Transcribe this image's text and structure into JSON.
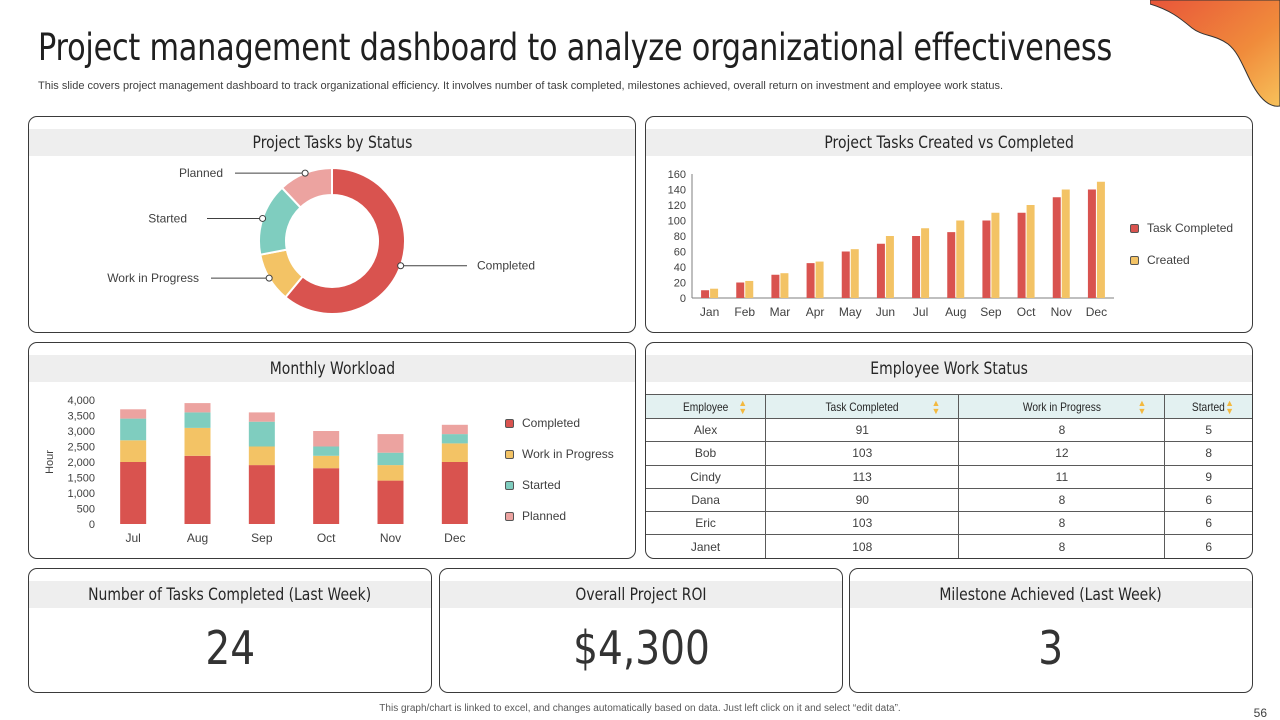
{
  "title": "Project management dashboard to analyze organizational effectiveness",
  "subtitle": "This slide covers project management dashboard to track organizational efficiency. It involves number of task completed, milestones achieved, overall return on investment and employee work status.",
  "footer_note": "This graph/chart is linked to excel, and changes automatically based on data. Just left click on it and select “edit data”.",
  "page_number": "56",
  "colors": {
    "red": "#d9534f",
    "yellow": "#f3c365",
    "teal": "#7fcdbf",
    "pink": "#eca3a0",
    "header_bg": "#eeeeee",
    "table_header_bg": "#e3f1f1",
    "deco_orange": "#ee8a3a"
  },
  "cards": {
    "tasks_by_status": {
      "title": "Project Tasks by Status"
    },
    "created_vs_completed": {
      "title": "Project Tasks Created  vs Completed"
    },
    "monthly_workload": {
      "title": "Monthly Workload"
    },
    "employee_status": {
      "title": "Employee Work Status"
    }
  },
  "chart_data": [
    {
      "type": "pie",
      "title": "Project Tasks by Status",
      "style": "donut",
      "categories": [
        "Completed",
        "Work in Progress",
        "Started",
        "Planned"
      ],
      "values": [
        61,
        11,
        16,
        12
      ],
      "colors": [
        "#d9534f",
        "#f3c365",
        "#7fcdbf",
        "#eca3a0"
      ]
    },
    {
      "type": "bar",
      "title": "Project Tasks Created  vs Completed",
      "categories": [
        "Jan",
        "Feb",
        "Mar",
        "Apr",
        "May",
        "Jun",
        "Jul",
        "Aug",
        "Sep",
        "Oct",
        "Nov",
        "Dec"
      ],
      "series": [
        {
          "name": "Task Completed",
          "color": "#d9534f",
          "values": [
            10,
            20,
            30,
            45,
            60,
            70,
            80,
            85,
            100,
            110,
            130,
            140
          ]
        },
        {
          "name": "Created",
          "color": "#f3c365",
          "values": [
            12,
            22,
            32,
            47,
            63,
            80,
            90,
            100,
            110,
            120,
            140,
            150
          ]
        }
      ],
      "y_ticks": [
        "0",
        "20",
        "40",
        "60",
        "80",
        "100",
        "120",
        "140",
        "160"
      ],
      "ylim": [
        0,
        160
      ],
      "legend_position": "right"
    },
    {
      "type": "bar",
      "stacked": true,
      "title": "Monthly Workload",
      "categories": [
        "Jul",
        "Aug",
        "Sep",
        "Oct",
        "Nov",
        "Dec"
      ],
      "series": [
        {
          "name": "Completed",
          "color": "#d9534f",
          "values": [
            2000,
            2200,
            1900,
            1800,
            1400,
            2000
          ]
        },
        {
          "name": "Work in Progress",
          "color": "#f3c365",
          "values": [
            700,
            900,
            600,
            400,
            500,
            600
          ]
        },
        {
          "name": "Started",
          "color": "#7fcdbf",
          "values": [
            700,
            500,
            800,
            300,
            400,
            300
          ]
        },
        {
          "name": "Planned",
          "color": "#eca3a0",
          "values": [
            300,
            300,
            300,
            500,
            600,
            300
          ]
        }
      ],
      "ylabel": "Hour",
      "y_ticks": [
        "0",
        "500",
        "1,000",
        "1,500",
        "2,000",
        "2,500",
        "3,000",
        "3,500",
        "4,000"
      ],
      "ylim": [
        0,
        4000
      ],
      "legend_position": "right"
    }
  ],
  "table": {
    "columns": [
      "Employee",
      "Task Completed",
      "Work in Progress",
      "Started"
    ],
    "rows": [
      [
        "Alex",
        "91",
        "8",
        "5"
      ],
      [
        "Bob",
        "103",
        "12",
        "8"
      ],
      [
        "Cindy",
        "113",
        "11",
        "9"
      ],
      [
        "Dana",
        "90",
        "8",
        "6"
      ],
      [
        "Eric",
        "103",
        "8",
        "6"
      ],
      [
        "Janet",
        "108",
        "8",
        "6"
      ]
    ]
  },
  "kpis": [
    {
      "label": "Number  of Tasks Completed  (Last Week)",
      "value": "24"
    },
    {
      "label": "Overall  Project  ROI",
      "value": "$4,300"
    },
    {
      "label": "Milestone  Achieved  (Last Week)",
      "value": "3"
    }
  ]
}
